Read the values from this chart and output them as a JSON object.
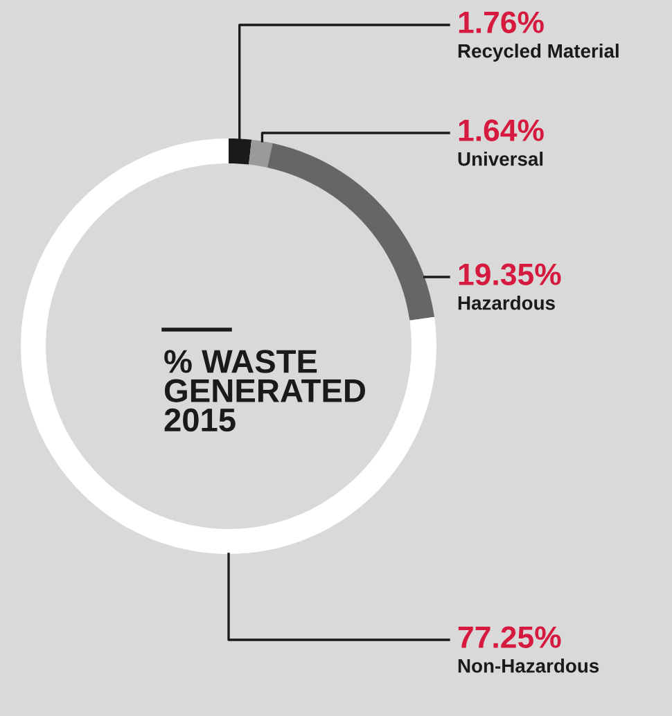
{
  "chart_data": {
    "type": "donut",
    "title": "% WASTE\nGENERATED\n2015",
    "categories": [
      "Recycled Material",
      "Universal",
      "Hazardous",
      "Non-Hazardous"
    ],
    "values": [
      1.76,
      1.64,
      19.35,
      77.25
    ],
    "value_labels": [
      "1.76%",
      "1.64%",
      "19.35%",
      "77.25%"
    ],
    "colors": [
      "#1a1a1a",
      "#9a9a9a",
      "#666666",
      "#ffffff"
    ],
    "legend": false
  }
}
